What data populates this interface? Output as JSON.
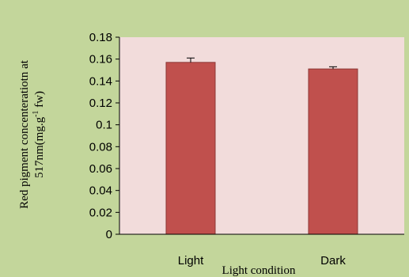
{
  "chart_data": {
    "type": "bar",
    "categories": [
      "Light",
      "Dark"
    ],
    "values": [
      0.157,
      0.151
    ],
    "errors": [
      0.004,
      0.002
    ],
    "ylim": [
      0,
      0.18
    ],
    "yticks": [
      "0",
      "0.02",
      "0.04",
      "0.06",
      "0.08",
      "0.1",
      "0.12",
      "0.14",
      "0.16",
      "0.18"
    ],
    "xlabel": "Light condition",
    "ylabel_line1": "Red pigment concenteratiotn at",
    "ylabel_line2_prefix": "517nm(mg.g",
    "ylabel_line2_sup": "-1",
    "ylabel_line2_suffix": " fw)",
    "grid": false,
    "legend": "none",
    "colors": {
      "bar": "#c0504d",
      "bar_stroke": "#8c3836",
      "plot_bg": "#f2dcdb",
      "chart_bg": "#c3d69b"
    }
  }
}
